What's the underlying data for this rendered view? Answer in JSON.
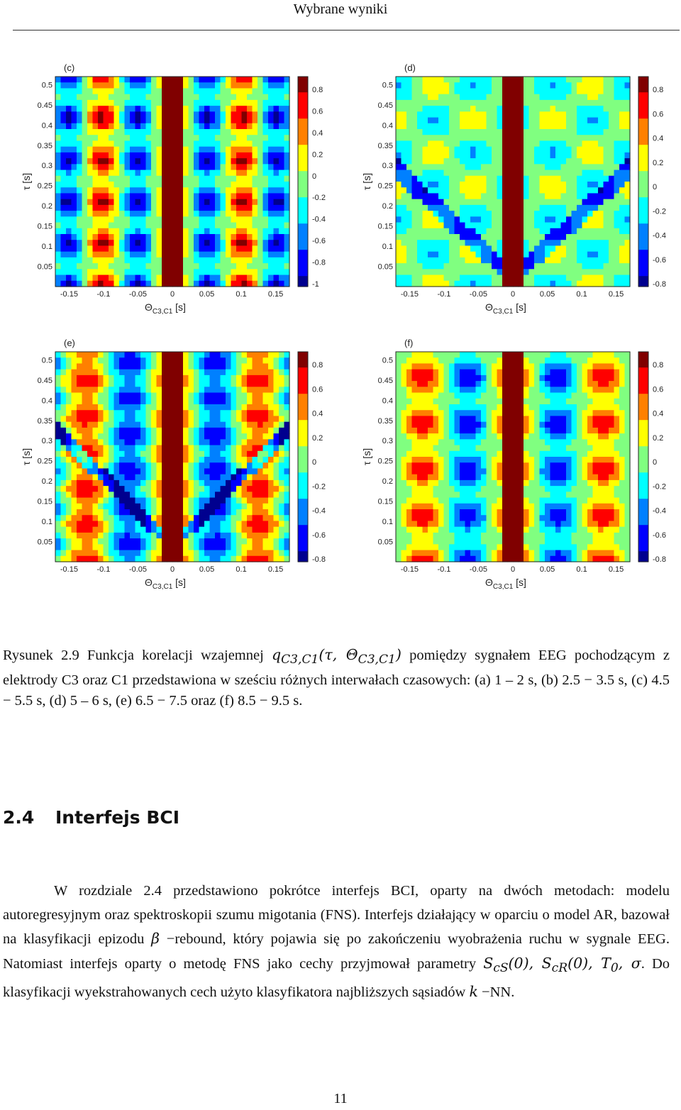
{
  "page": {
    "running_header": "Wybrane wyniki",
    "page_number": "11"
  },
  "colormap": [
    "#00008f",
    "#0000ff",
    "#0080ff",
    "#00ffff",
    "#80ff80",
    "#ffff00",
    "#ff8000",
    "#ff0000",
    "#800000"
  ],
  "figure": {
    "panels": [
      {
        "id": "c",
        "label": "(c)",
        "yticks": [
          "0.5",
          "0.45",
          "0.4",
          "0.35",
          "0.3",
          "0.25",
          "0.2",
          "0.15",
          "0.1",
          "0.05"
        ],
        "xticks": [
          "-0.15",
          "-0.1",
          "-0.05",
          "0",
          "0.05",
          "0.1",
          "0.15"
        ],
        "colorbar_ticks": [
          "0.8",
          "0.6",
          "0.4",
          "0.2",
          "0",
          "-0.2",
          "-0.4",
          "-0.6",
          "-0.8",
          "-1"
        ],
        "ylabel": "τ [s]",
        "xlabel": "Θ",
        "xlabel_sub": "C3,C1",
        "xlabel_unit": "[s]"
      },
      {
        "id": "d",
        "label": "(d)",
        "yticks": [
          "0.5",
          "0.45",
          "0.4",
          "0.35",
          "0.3",
          "0.25",
          "0.2",
          "0.15",
          "0.1",
          "0.05"
        ],
        "xticks": [
          "-0.15",
          "-0.1",
          "-0.05",
          "0",
          "0.05",
          "0.1",
          "0.15"
        ],
        "colorbar_ticks": [
          "0.8",
          "0.6",
          "0.4",
          "0.2",
          "0",
          "-0.2",
          "-0.4",
          "-0.6",
          "-0.8"
        ],
        "ylabel": "τ [s]",
        "xlabel": "Θ",
        "xlabel_sub": "C3,C1",
        "xlabel_unit": "[s]"
      },
      {
        "id": "e",
        "label": "(e)",
        "yticks": [
          "0.5",
          "0.45",
          "0.4",
          "0.35",
          "0.3",
          "0.25",
          "0.2",
          "0.15",
          "0.1",
          "0.05"
        ],
        "xticks": [
          "-0.15",
          "-0.1",
          "-0.05",
          "0",
          "0.05",
          "0.1",
          "0.15"
        ],
        "colorbar_ticks": [
          "0.8",
          "0.6",
          "0.4",
          "0.2",
          "0",
          "-0.2",
          "-0.4",
          "-0.6",
          "-0.8"
        ],
        "ylabel": "τ [s]",
        "xlabel": "Θ",
        "xlabel_sub": "C3,C1",
        "xlabel_unit": "[s]"
      },
      {
        "id": "f",
        "label": "(f)",
        "yticks": [
          "0.5",
          "0.45",
          "0.4",
          "0.35",
          "0.3",
          "0.25",
          "0.2",
          "0.15",
          "0.1",
          "0.05"
        ],
        "xticks": [
          "-0.15",
          "-0.1",
          "-0.05",
          "0",
          "0.05",
          "0.1",
          "0.15"
        ],
        "colorbar_ticks": [
          "0.8",
          "0.6",
          "0.4",
          "0.2",
          "0",
          "-0.2",
          "-0.4",
          "-0.6",
          "-0.8"
        ],
        "ylabel": "τ [s]",
        "xlabel": "Θ",
        "xlabel_sub": "C3,C1",
        "xlabel_unit": "[s]"
      }
    ]
  },
  "caption": {
    "t1": "Rysunek 2.9 Funkcja korelacji wzajemnej ",
    "m1": "q",
    "m1_sub": "C3,C1",
    "m2": "(τ, Θ",
    "m2_sub": "C3,C1",
    "m3": ")",
    "t2": " pomiędzy sygnałem EEG pochodzącym z elektrody C3 oraz C1 przedstawiona w sześciu różnych interwałach czasowych: (a) 1 – 2 s, (b) 2.5 − 3.5 s, (c) 4.5 − 5.5 s, (d) 5 – 6 s, (e) 6.5 − 7.5 oraz (f) 8.5 − 9.5 s."
  },
  "section": {
    "number": "2.4",
    "title": "Interfejs BCI"
  },
  "body": {
    "t1": "W rozdziale 2.4 przedstawiono pokrótce interfejs BCI, oparty na dwóch metodach: modelu autoregresyjnym oraz spektroskopii szumu migotania (FNS). Interfejs działający w oparciu o model AR, bazował na klasyfikacji epizodu ",
    "m_beta": "β",
    "t2": " −rebound, który pojawia się po zakończeniu wyobrażenia ruchu w sygnale EEG. Natomiast interfejs oparty o metodę FNS jako cechy przyjmował parametry ",
    "m_params": "S",
    "m_params_sub1": "cS",
    "m_params_mid": "(0), S",
    "m_params_sub2": "cR",
    "m_params_end": "(0), T",
    "m_params_sub3": "0",
    "m_params_tail": ", σ",
    "t3": ". Do klasyfikacji wyekstrahowanych cech użyto klasyfikatora najbliższych sąsiadów ",
    "m_k": "k",
    "t4": " −NN."
  }
}
